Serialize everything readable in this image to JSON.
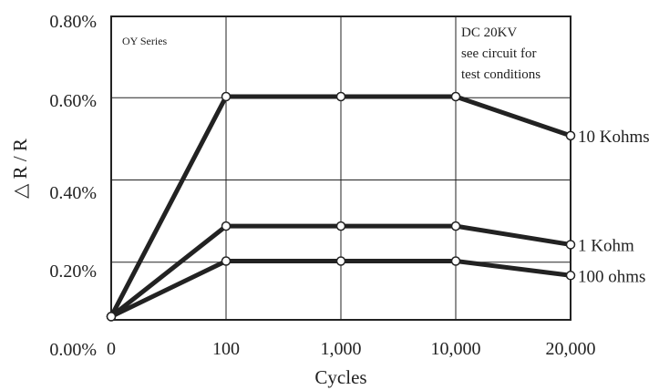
{
  "chart_data": {
    "type": "line",
    "categories": [
      "0",
      "100",
      "1,000",
      "10,000",
      "20,000"
    ],
    "xlabel": "Cycles",
    "ylabel": "△ R / R",
    "yticks": [
      "0.00%",
      "0.20%",
      "0.40%",
      "0.60%",
      "0.80%"
    ],
    "ylim": [
      0,
      0.8
    ],
    "grid": true,
    "annotations": {
      "series_note": "OY Series",
      "conditions": [
        "DC 20KV",
        "see circuit for",
        "test conditions"
      ]
    },
    "series": [
      {
        "name": "10 Kohms",
        "values": [
          0.07,
          0.605,
          0.605,
          0.605,
          0.51
        ]
      },
      {
        "name": "1 Kohm",
        "values": [
          0.07,
          0.29,
          0.29,
          0.29,
          0.245
        ]
      },
      {
        "name": "100 ohms",
        "values": [
          0.07,
          0.205,
          0.205,
          0.205,
          0.17
        ]
      }
    ],
    "colors": {
      "line": "#222222",
      "grid": "#222222",
      "marker_fill": "#ffffff"
    }
  }
}
